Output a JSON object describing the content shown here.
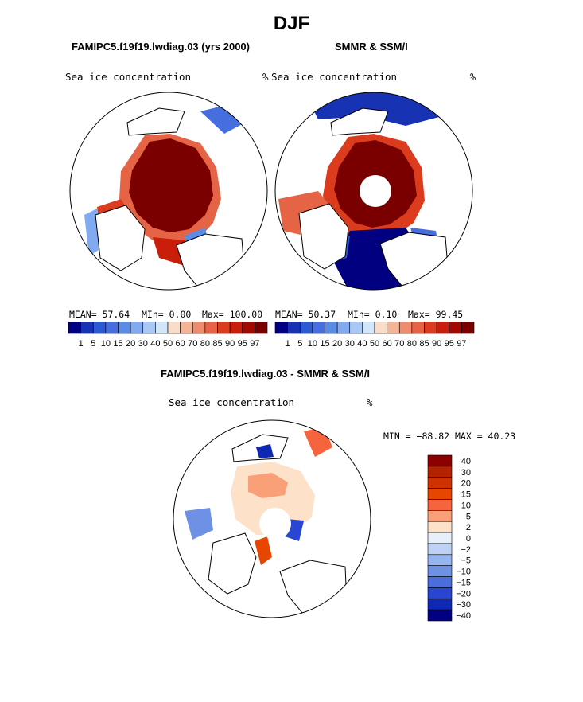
{
  "page_title": "DJF",
  "panels": [
    {
      "title": "FAMIPC5.f19f19.lwdiag.03 (yrs 2000)",
      "left_label": "Sea ice concentration",
      "units": "%",
      "stats": {
        "mean": "MEAN=   57.64",
        "min": "MIn=    0.00",
        "max": "Max= 100.00"
      }
    },
    {
      "title": "SMMR & SSM/I",
      "left_label": "Sea ice concentration",
      "units": "%",
      "stats": {
        "mean": "MEAN=   50.37",
        "min": "MIn=    0.10",
        "max": "Max=  99.45"
      }
    },
    {
      "title": "FAMIPC5.f19f19.lwdiag.03 - SMMR & SSM/I",
      "left_label": "Sea ice concentration",
      "units": "%",
      "minmax": "MIN = −88.82 MAX =  40.23"
    }
  ],
  "chart_data": [
    {
      "type": "heatmap",
      "title": "FAMIPC5.f19f19.lwdiag.03 (yrs 2000)",
      "variable": "Sea ice concentration",
      "units": "%",
      "projection": "north polar stereographic",
      "mean": 57.64,
      "min": 0.0,
      "max": 100.0,
      "colorbar_levels": [
        1,
        5,
        10,
        15,
        20,
        30,
        40,
        50,
        60,
        70,
        80,
        85,
        90,
        95,
        97
      ]
    },
    {
      "type": "heatmap",
      "title": "SMMR & SSM/I",
      "variable": "Sea ice concentration",
      "units": "%",
      "projection": "north polar stereographic",
      "mean": 50.37,
      "min": 0.1,
      "max": 99.45,
      "colorbar_levels": [
        1,
        5,
        10,
        15,
        20,
        30,
        40,
        50,
        60,
        70,
        80,
        85,
        90,
        95,
        97
      ]
    },
    {
      "type": "heatmap",
      "title": "FAMIPC5.f19f19.lwdiag.03 - SMMR & SSM/I",
      "variable": "Sea ice concentration",
      "units": "%",
      "projection": "north polar stereographic",
      "min": -88.82,
      "max": 40.23,
      "colorbar_levels": [
        40,
        30,
        20,
        15,
        10,
        5,
        2,
        0,
        -2,
        -5,
        -10,
        -15,
        -20,
        -30,
        -40
      ]
    }
  ],
  "colors": {
    "seq": [
      "#000080",
      "#1832b4",
      "#2c5ad2",
      "#466ede",
      "#5a8ce6",
      "#82aaf0",
      "#aac8f5",
      "#d2e6fa",
      "#fadcc8",
      "#f5b496",
      "#f08c6e",
      "#e66446",
      "#dc3c1e",
      "#c81e0a",
      "#a00a00",
      "#7a0000"
    ],
    "diff": [
      "#8b0000",
      "#b42300",
      "#cd3200",
      "#e64600",
      "#f5643c",
      "#faa078",
      "#fde1c8",
      "#e6f0fa",
      "#bed2f5",
      "#96b4f0",
      "#6e91e6",
      "#4b6edc",
      "#2846d2",
      "#0f28b4",
      "#000080"
    ],
    "land": "#ffffff",
    "outline": "#000000"
  }
}
